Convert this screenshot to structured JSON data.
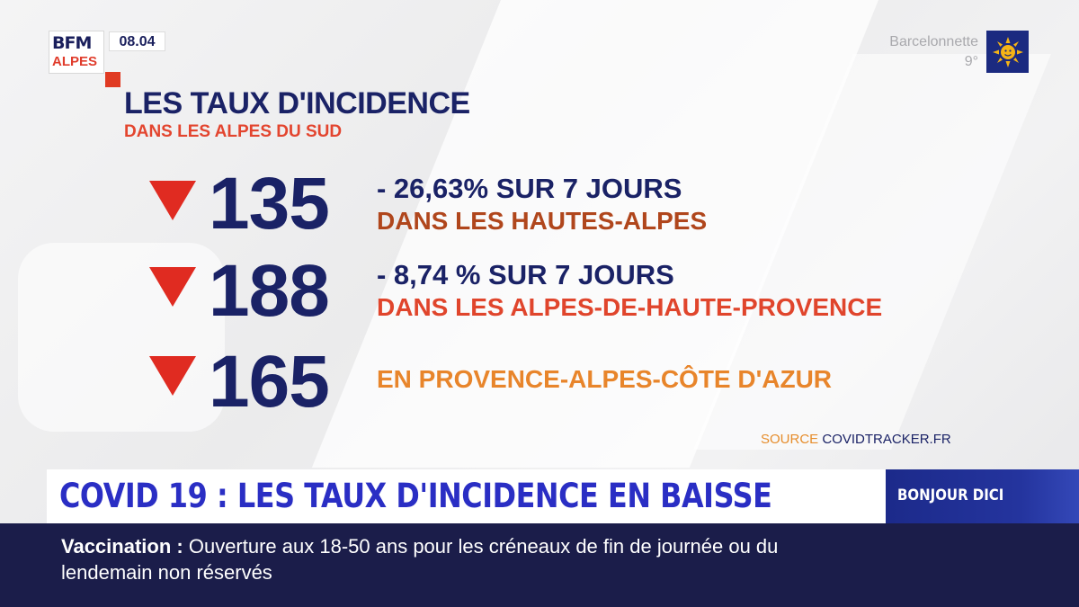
{
  "brand": {
    "logo_top": "BFM",
    "logo_bottom": "ALPES",
    "time": "08.04"
  },
  "weather": {
    "city": "Barcelonnette",
    "temperature": "9°",
    "icon": "sun-icon"
  },
  "graphic": {
    "title": "LES TAUX D'INCIDENCE",
    "subtitle": "DANS LES ALPES DU SUD",
    "rows": [
      {
        "value": "135",
        "line1": "- 26,63% SUR 7 JOURS",
        "line2": "DANS LES HAUTES-ALPES",
        "line2_color": "#b0461c",
        "trend_icon": "down-triangle-icon"
      },
      {
        "value": "188",
        "line1": "- 8,74 % SUR 7 JOURS",
        "line2": "DANS LES ALPES-DE-HAUTE-PROVENCE",
        "line2_color": "#e0452c",
        "trend_icon": "down-triangle-icon"
      },
      {
        "value": "165",
        "line1": "",
        "line2": "EN PROVENCE-ALPES-CÔTE D'AZUR",
        "line2_color": "#e8852b",
        "trend_icon": "down-triangle-icon"
      }
    ],
    "source_label": "SOURCE",
    "source_value": "COVIDTRACKER.FR"
  },
  "headline": {
    "text": "COVID 19 : LES TAUX D'INCIDENCE EN BAISSE",
    "show": "BONJOUR DICI"
  },
  "ticker": {
    "keyword": "Vaccination",
    "separator": " : ",
    "text": "Ouverture aux 18-50 ans pour les créneaux de fin de journée ou du lendemain non réservés"
  },
  "colors": {
    "navy": "#1a2266",
    "red": "#e02b21",
    "headline_blue": "#2a2ec4",
    "ticker_bg": "#1b1d4a"
  }
}
